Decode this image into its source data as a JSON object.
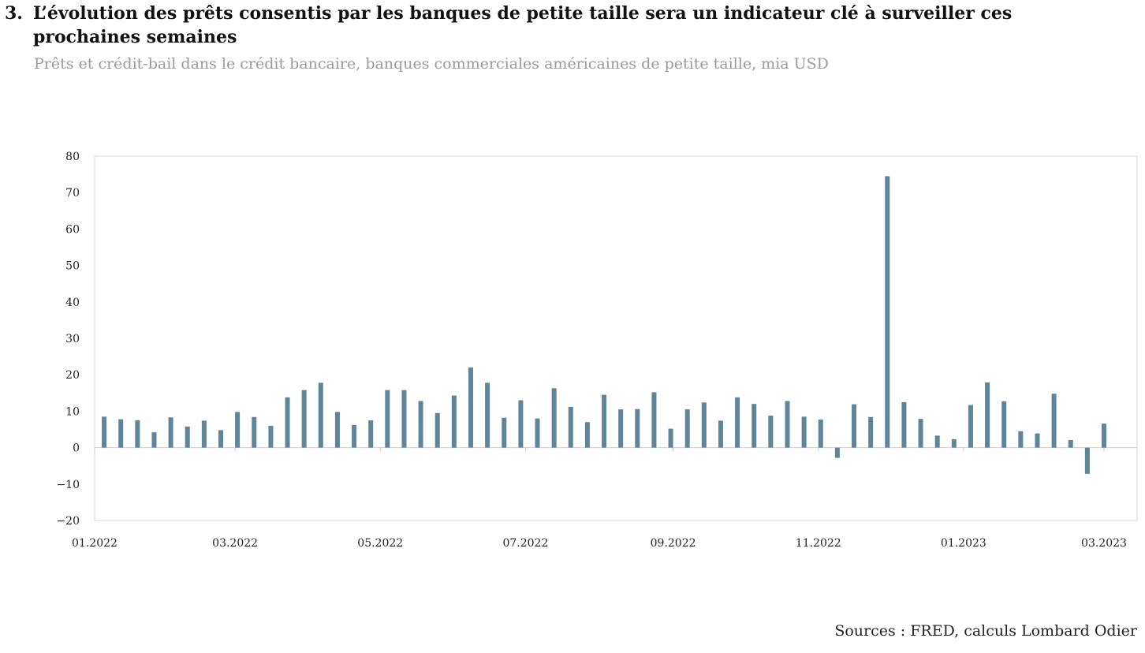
{
  "title_number": "3.",
  "title": "L’évolution des prêts consentis par les banques de petite taille sera un indicateur clé à surveiller ces prochaines semaines",
  "subtitle": "Prêts et crédit-bail dans le crédit bancaire, banques commerciales américaines de petite taille, mia USD",
  "source": "Sources : FRED, calculs Lombard Odier",
  "chart_data": {
    "type": "bar",
    "ylim": [
      -20,
      80
    ],
    "yticks": [
      -20,
      -10,
      0,
      10,
      20,
      30,
      40,
      50,
      60,
      70,
      80
    ],
    "xlim": [
      "2022-01-01",
      "2023-03-01"
    ],
    "xticks": [
      {
        "label": "01.2022",
        "date": "2022-01-01"
      },
      {
        "label": "03.2022",
        "date": "2022-03-01"
      },
      {
        "label": "05.2022",
        "date": "2022-05-01"
      },
      {
        "label": "07.2022",
        "date": "2022-07-01"
      },
      {
        "label": "09.2022",
        "date": "2022-09-01"
      },
      {
        "label": "11.2022",
        "date": "2022-11-01"
      },
      {
        "label": "01.2023",
        "date": "2023-01-01"
      },
      {
        "label": "03.2023",
        "date": "2023-03-01"
      }
    ],
    "grid": false,
    "bar_color": "#5e8599",
    "points": [
      {
        "date": "2022-01-05",
        "value": 8.5
      },
      {
        "date": "2022-01-12",
        "value": 7.8
      },
      {
        "date": "2022-01-19",
        "value": 7.5
      },
      {
        "date": "2022-01-26",
        "value": 4.2
      },
      {
        "date": "2022-02-02",
        "value": 8.3
      },
      {
        "date": "2022-02-09",
        "value": 5.8
      },
      {
        "date": "2022-02-16",
        "value": 7.4
      },
      {
        "date": "2022-02-23",
        "value": 4.8
      },
      {
        "date": "2022-03-02",
        "value": 9.8
      },
      {
        "date": "2022-03-09",
        "value": 8.4
      },
      {
        "date": "2022-03-16",
        "value": 6.0
      },
      {
        "date": "2022-03-23",
        "value": 13.8
      },
      {
        "date": "2022-03-30",
        "value": 15.8
      },
      {
        "date": "2022-04-06",
        "value": 17.8
      },
      {
        "date": "2022-04-13",
        "value": 9.8
      },
      {
        "date": "2022-04-20",
        "value": 6.2
      },
      {
        "date": "2022-04-27",
        "value": 7.5
      },
      {
        "date": "2022-05-04",
        "value": 15.8
      },
      {
        "date": "2022-05-11",
        "value": 15.8
      },
      {
        "date": "2022-05-18",
        "value": 12.8
      },
      {
        "date": "2022-05-25",
        "value": 9.5
      },
      {
        "date": "2022-06-01",
        "value": 14.3
      },
      {
        "date": "2022-06-08",
        "value": 22.0
      },
      {
        "date": "2022-06-15",
        "value": 17.8
      },
      {
        "date": "2022-06-22",
        "value": 8.2
      },
      {
        "date": "2022-06-29",
        "value": 13.0
      },
      {
        "date": "2022-07-06",
        "value": 8.0
      },
      {
        "date": "2022-07-13",
        "value": 16.3
      },
      {
        "date": "2022-07-20",
        "value": 11.2
      },
      {
        "date": "2022-07-27",
        "value": 7.0
      },
      {
        "date": "2022-08-03",
        "value": 14.5
      },
      {
        "date": "2022-08-10",
        "value": 10.5
      },
      {
        "date": "2022-08-17",
        "value": 10.6
      },
      {
        "date": "2022-08-24",
        "value": 15.2
      },
      {
        "date": "2022-08-31",
        "value": 5.2
      },
      {
        "date": "2022-09-07",
        "value": 10.5
      },
      {
        "date": "2022-09-14",
        "value": 12.4
      },
      {
        "date": "2022-09-21",
        "value": 7.4
      },
      {
        "date": "2022-09-28",
        "value": 13.8
      },
      {
        "date": "2022-10-05",
        "value": 12.0
      },
      {
        "date": "2022-10-12",
        "value": 8.8
      },
      {
        "date": "2022-10-19",
        "value": 12.8
      },
      {
        "date": "2022-10-26",
        "value": 8.5
      },
      {
        "date": "2022-11-02",
        "value": 7.7
      },
      {
        "date": "2022-11-09",
        "value": -2.8
      },
      {
        "date": "2022-11-16",
        "value": 11.9
      },
      {
        "date": "2022-11-23",
        "value": 8.4
      },
      {
        "date": "2022-11-30",
        "value": 74.5
      },
      {
        "date": "2022-12-07",
        "value": 12.5
      },
      {
        "date": "2022-12-14",
        "value": 7.9
      },
      {
        "date": "2022-12-21",
        "value": 3.3
      },
      {
        "date": "2022-12-28",
        "value": 2.3
      },
      {
        "date": "2023-01-04",
        "value": 11.7
      },
      {
        "date": "2023-01-11",
        "value": 17.9
      },
      {
        "date": "2023-01-18",
        "value": 12.7
      },
      {
        "date": "2023-01-25",
        "value": 4.5
      },
      {
        "date": "2023-02-01",
        "value": 3.9
      },
      {
        "date": "2023-02-08",
        "value": 14.8
      },
      {
        "date": "2023-02-15",
        "value": 2.1
      },
      {
        "date": "2023-02-22",
        "value": -7.2
      },
      {
        "date": "2023-03-01",
        "value": 6.6
      }
    ]
  }
}
